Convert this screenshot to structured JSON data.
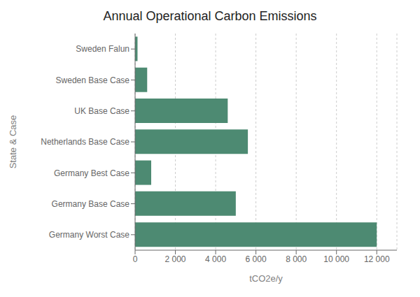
{
  "chart_data": {
    "type": "bar",
    "orientation": "horizontal",
    "title": "Annual Operational Carbon Emissions",
    "xlabel": "tCO2e/y",
    "ylabel": "State & Case",
    "categories": [
      "Germany Worst Case",
      "Germany Base Case",
      "Germany Best Case",
      "Netherlands Base Case",
      "UK Base Case",
      "Sweden Base Case",
      "Sweden Falun"
    ],
    "values": [
      12000,
      5000,
      800,
      5600,
      4600,
      600,
      120
    ],
    "color": "#4d8a72",
    "xlim": [
      0,
      13000
    ],
    "xticks": [
      0,
      {
        "value": 2000,
        "label": "2 000"
      },
      {
        "value": 4000,
        "label": "4 000"
      },
      {
        "value": 6000,
        "label": "6 000"
      },
      {
        "value": 8000,
        "label": "8 000"
      },
      {
        "value": 10000,
        "label": "10 000"
      },
      {
        "value": 12000,
        "label": "12 000"
      }
    ],
    "grid": true
  }
}
